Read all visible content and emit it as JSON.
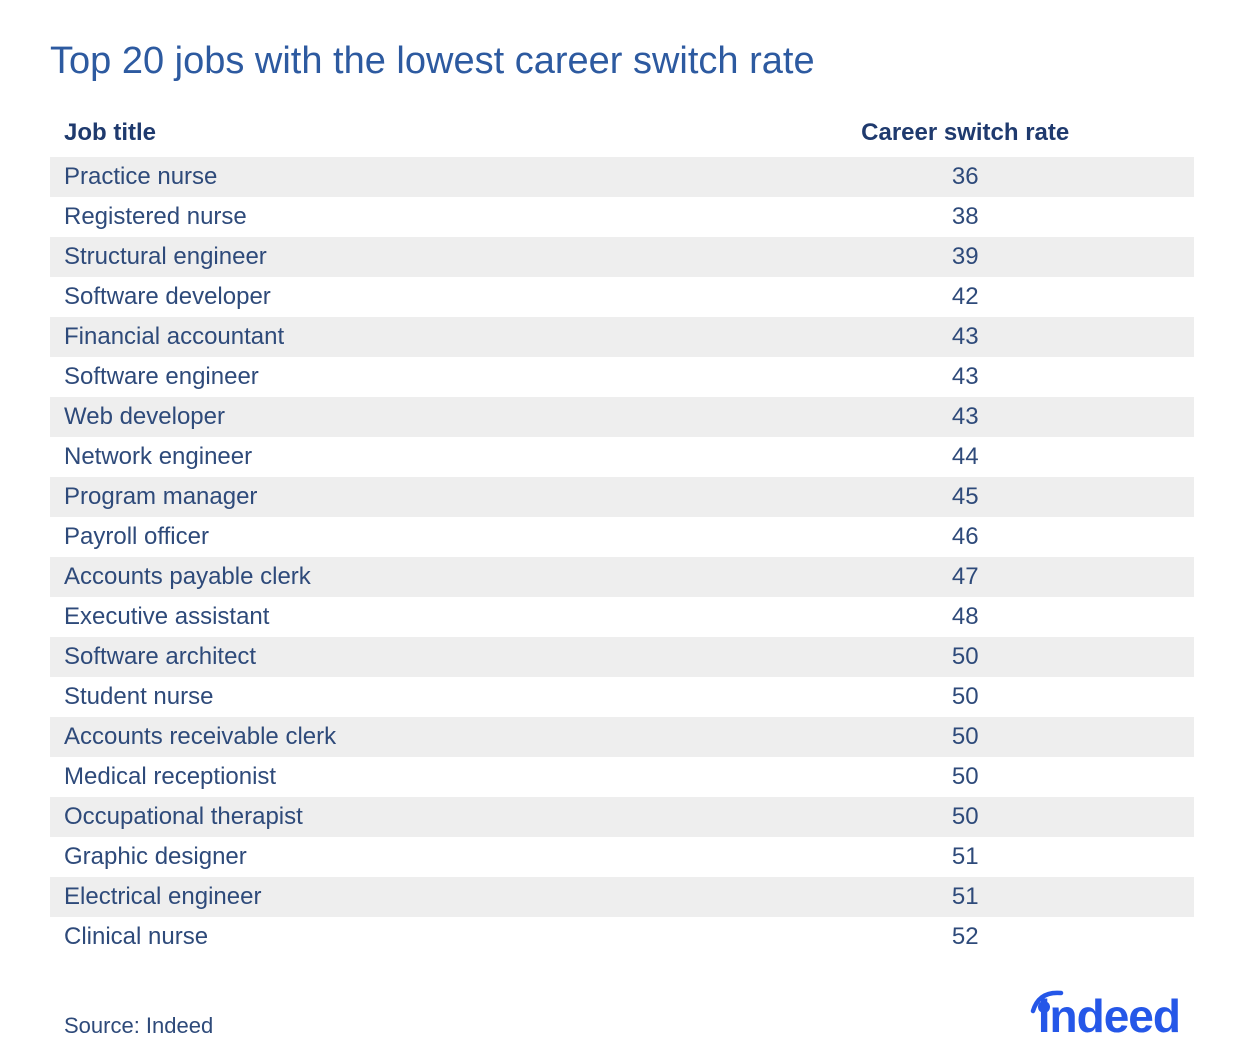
{
  "title": "Top 20 jobs with the lowest career switch rate",
  "colors": {
    "title": "#2d5aa0",
    "header_text": "#1f3a6e",
    "body_text": "#2e4a7a",
    "row_stripe": "#eeeeee",
    "row_plain": "#ffffff",
    "source_text": "#2e4a7a",
    "logo": "#2557e8"
  },
  "typography": {
    "title_fontsize": 38,
    "header_fontsize": 24,
    "body_fontsize": 24,
    "source_fontsize": 22,
    "logo_fontsize": 46
  },
  "table": {
    "type": "table",
    "columns": [
      "Job title",
      "Career switch rate"
    ],
    "column_align": [
      "left",
      "center"
    ],
    "rows": [
      [
        "Practice nurse",
        36
      ],
      [
        "Registered nurse",
        38
      ],
      [
        "Structural engineer",
        39
      ],
      [
        "Software developer",
        42
      ],
      [
        "Financial accountant",
        43
      ],
      [
        "Software engineer",
        43
      ],
      [
        "Web developer",
        43
      ],
      [
        "Network engineer",
        44
      ],
      [
        "Program manager",
        45
      ],
      [
        "Payroll officer",
        46
      ],
      [
        "Accounts payable clerk",
        47
      ],
      [
        "Executive assistant",
        48
      ],
      [
        "Software architect",
        50
      ],
      [
        "Student nurse",
        50
      ],
      [
        "Accounts receivable clerk",
        50
      ],
      [
        "Medical receptionist",
        50
      ],
      [
        "Occupational therapist",
        50
      ],
      [
        "Graphic designer",
        51
      ],
      [
        "Electrical engineer",
        51
      ],
      [
        "Clinical nurse",
        52
      ]
    ]
  },
  "source": "Source: Indeed",
  "logo_text": "indeed"
}
